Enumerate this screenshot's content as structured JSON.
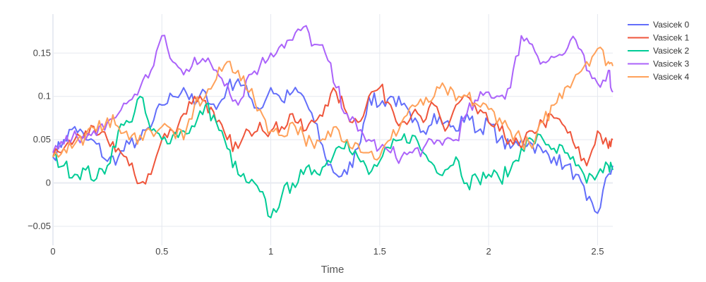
{
  "chart_data": {
    "type": "line",
    "title": "",
    "xlabel": "Time",
    "ylabel": "",
    "xlim": [
      0,
      2.57
    ],
    "ylim": [
      -0.072,
      0.195
    ],
    "x_ticks": [
      0,
      0.5,
      1,
      1.5,
      2,
      2.5
    ],
    "x_tick_labels": [
      "0",
      "0.5",
      "1",
      "1.5",
      "2",
      "2.5"
    ],
    "y_ticks": [
      -0.05,
      0,
      0.05,
      0.1,
      0.15
    ],
    "y_tick_labels": [
      "−0.05",
      "0",
      "0.05",
      "0.1",
      "0.15"
    ],
    "grid": true,
    "legend_position": "top-right",
    "x": [
      0,
      0.05,
      0.1,
      0.15,
      0.2,
      0.25,
      0.3,
      0.35,
      0.4,
      0.45,
      0.5,
      0.55,
      0.6,
      0.65,
      0.7,
      0.75,
      0.8,
      0.85,
      0.9,
      0.95,
      1.0,
      1.05,
      1.1,
      1.15,
      1.2,
      1.25,
      1.3,
      1.35,
      1.4,
      1.45,
      1.5,
      1.55,
      1.6,
      1.65,
      1.7,
      1.75,
      1.8,
      1.85,
      1.9,
      1.95,
      2.0,
      2.05,
      2.1,
      2.15,
      2.2,
      2.25,
      2.3,
      2.35,
      2.4,
      2.45,
      2.5,
      2.55,
      2.57
    ],
    "series": [
      {
        "name": "Vasicek 0",
        "color": "#636efa",
        "values": [
          0.03,
          0.05,
          0.065,
          0.05,
          0.045,
          0.025,
          0.03,
          0.045,
          0.05,
          0.065,
          0.09,
          0.1,
          0.11,
          0.09,
          0.105,
          0.085,
          0.11,
          0.12,
          0.1,
          0.085,
          0.11,
          0.095,
          0.105,
          0.1,
          0.07,
          0.03,
          0.01,
          0.01,
          0.04,
          0.1,
          0.09,
          0.1,
          0.09,
          0.07,
          0.06,
          0.08,
          0.07,
          0.06,
          0.08,
          0.06,
          0.07,
          0.05,
          0.04,
          0.05,
          0.045,
          0.035,
          0.03,
          0.02,
          0.01,
          -0.02,
          -0.035,
          0.01,
          0.02
        ]
      },
      {
        "name": "Vasicek 1",
        "color": "#ef553b",
        "values": [
          0.03,
          0.04,
          0.05,
          0.06,
          0.055,
          0.05,
          0.04,
          0.02,
          0.0,
          0.01,
          0.05,
          0.06,
          0.08,
          0.1,
          0.095,
          0.07,
          0.05,
          0.04,
          0.06,
          0.07,
          0.06,
          0.065,
          0.08,
          0.06,
          0.07,
          0.09,
          0.105,
          0.08,
          0.07,
          0.1,
          0.11,
          0.09,
          0.07,
          0.08,
          0.07,
          0.09,
          0.06,
          0.09,
          0.1,
          0.08,
          0.07,
          0.06,
          0.05,
          0.04,
          0.06,
          0.07,
          0.075,
          0.065,
          0.04,
          0.02,
          0.06,
          0.04,
          0.05
        ]
      },
      {
        "name": "Vasicek 2",
        "color": "#00cc96",
        "values": [
          0.03,
          0.02,
          0.01,
          0.015,
          0.005,
          0.02,
          0.06,
          0.07,
          0.1,
          0.06,
          0.05,
          0.055,
          0.06,
          0.065,
          0.09,
          0.07,
          0.04,
          0.01,
          0.0,
          -0.01,
          -0.04,
          -0.015,
          0.0,
          0.01,
          0.015,
          0.02,
          0.04,
          0.05,
          0.03,
          0.01,
          0.025,
          0.04,
          0.05,
          0.055,
          0.035,
          0.02,
          0.015,
          0.03,
          0.0,
          0.005,
          0.01,
          0.005,
          0.015,
          0.04,
          0.05,
          0.05,
          0.04,
          0.035,
          0.02,
          0.0,
          0.01,
          0.02,
          0.015
        ]
      },
      {
        "name": "Vasicek 3",
        "color": "#ab63fa",
        "values": [
          0.035,
          0.045,
          0.06,
          0.05,
          0.055,
          0.07,
          0.08,
          0.095,
          0.11,
          0.13,
          0.17,
          0.14,
          0.125,
          0.145,
          0.14,
          0.13,
          0.115,
          0.09,
          0.125,
          0.135,
          0.15,
          0.16,
          0.165,
          0.18,
          0.16,
          0.15,
          0.11,
          0.08,
          0.06,
          0.05,
          0.04,
          0.035,
          0.03,
          0.035,
          0.04,
          0.045,
          0.05,
          0.05,
          0.08,
          0.095,
          0.105,
          0.1,
          0.11,
          0.17,
          0.16,
          0.14,
          0.145,
          0.15,
          0.165,
          0.13,
          0.115,
          0.13,
          0.105
        ]
      },
      {
        "name": "Vasicek 4",
        "color": "#ffa15a",
        "values": [
          0.03,
          0.04,
          0.045,
          0.055,
          0.06,
          0.075,
          0.065,
          0.05,
          0.055,
          0.06,
          0.065,
          0.06,
          0.05,
          0.09,
          0.1,
          0.12,
          0.14,
          0.13,
          0.105,
          0.085,
          0.06,
          0.055,
          0.07,
          0.055,
          0.04,
          0.05,
          0.065,
          0.05,
          0.045,
          0.035,
          0.03,
          0.05,
          0.07,
          0.09,
          0.09,
          0.1,
          0.11,
          0.095,
          0.1,
          0.09,
          0.085,
          0.075,
          0.06,
          0.05,
          0.04,
          0.07,
          0.09,
          0.11,
          0.125,
          0.14,
          0.155,
          0.14,
          0.135
        ]
      }
    ]
  }
}
